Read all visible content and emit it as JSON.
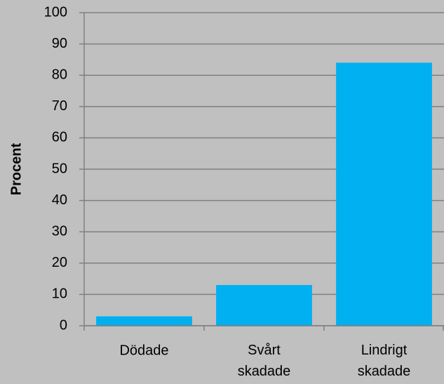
{
  "chart_data": {
    "type": "bar",
    "y_label": "Procent",
    "categories": [
      "Dödade",
      "Svårt skadade",
      "Lindrigt skadade"
    ],
    "values": [
      3,
      13,
      84
    ],
    "color": "#00b0f0",
    "ylim": [
      0,
      100
    ],
    "yticks": [
      0,
      10,
      20,
      30,
      40,
      50,
      60,
      70,
      80,
      90,
      100
    ],
    "grid": true
  }
}
